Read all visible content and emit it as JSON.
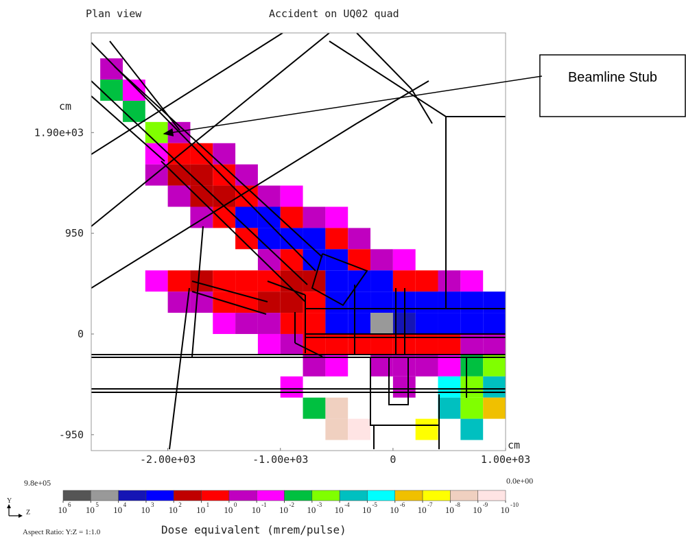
{
  "chart_data": {
    "type": "heatmap",
    "title": "Accident on UQ02 quad",
    "subtitle": "Plan view",
    "x_unit": "cm",
    "y_unit": "cm",
    "xlim": [
      -2680,
      1000
    ],
    "ylim": [
      -1100,
      2840
    ],
    "xticks": [
      {
        "value": -2000,
        "label": "-2.00e+03"
      },
      {
        "value": -1000,
        "label": "-1.00e+03"
      },
      0,
      {
        "value": 1000,
        "label": "1.00e+03"
      }
    ],
    "yticks": [
      {
        "value": 1900,
        "label": "1.90e+03"
      },
      950,
      0,
      -950
    ],
    "x_bins": [
      -2600,
      -2400,
      -2200,
      -2000,
      -1800,
      -1600,
      -1400,
      -1200,
      -1000,
      -800,
      -600,
      -400,
      -200,
      0,
      200,
      400,
      600,
      800,
      1000
    ],
    "y_bins": [
      2800,
      2600,
      2400,
      2200,
      2000,
      1800,
      1600,
      1400,
      1200,
      1000,
      800,
      600,
      400,
      200,
      0,
      -200,
      -400,
      -600,
      -800,
      -1000
    ],
    "z": [
      [
        null,
        null,
        null,
        null,
        null,
        null,
        null,
        null,
        null,
        null,
        null,
        null,
        null,
        null,
        null,
        null,
        null,
        null
      ],
      [
        -0.5,
        null,
        null,
        null,
        null,
        null,
        null,
        null,
        null,
        null,
        null,
        null,
        null,
        null,
        null,
        null,
        null,
        null
      ],
      [
        -2.5,
        -1.5,
        null,
        null,
        null,
        null,
        null,
        null,
        null,
        null,
        null,
        null,
        null,
        null,
        null,
        null,
        null,
        null
      ],
      [
        null,
        -2.5,
        null,
        null,
        null,
        null,
        null,
        null,
        null,
        null,
        null,
        null,
        null,
        null,
        null,
        null,
        null,
        null
      ],
      [
        null,
        null,
        -3.5,
        -0.5,
        null,
        null,
        null,
        null,
        null,
        null,
        null,
        null,
        null,
        null,
        null,
        null,
        null,
        null
      ],
      [
        null,
        null,
        -1.5,
        0.5,
        0.5,
        -0.5,
        null,
        null,
        null,
        null,
        null,
        null,
        null,
        null,
        null,
        null,
        null,
        null
      ],
      [
        null,
        null,
        -0.5,
        1.5,
        1.5,
        0.5,
        -0.5,
        null,
        null,
        null,
        null,
        null,
        null,
        null,
        null,
        null,
        null,
        null
      ],
      [
        null,
        null,
        null,
        -0.5,
        1.5,
        1.5,
        0.5,
        -0.5,
        -1.5,
        null,
        null,
        null,
        null,
        null,
        null,
        null,
        null,
        null
      ],
      [
        null,
        null,
        null,
        null,
        -0.5,
        0.5,
        2.5,
        2.5,
        0.5,
        -0.5,
        -1.5,
        null,
        null,
        null,
        null,
        null,
        null,
        null
      ],
      [
        null,
        null,
        null,
        null,
        null,
        null,
        0.5,
        2.5,
        2.5,
        2.5,
        0.5,
        -0.5,
        null,
        null,
        null,
        null,
        null,
        null
      ],
      [
        null,
        null,
        null,
        null,
        null,
        null,
        null,
        -0.5,
        0.5,
        2.5,
        2.5,
        0.5,
        -0.5,
        -1.5,
        null,
        null,
        null,
        null
      ],
      [
        null,
        null,
        -1.5,
        0.5,
        1.5,
        0.5,
        0.5,
        0.5,
        1.5,
        1.5,
        2.5,
        2.5,
        2.5,
        0.5,
        0.5,
        -0.5,
        -1.5,
        null
      ],
      [
        null,
        null,
        null,
        -0.5,
        -0.5,
        0.5,
        0.5,
        1.5,
        1.5,
        0.5,
        2.5,
        2.5,
        2.5,
        2.5,
        2.5,
        2.5,
        2.5,
        2.5
      ],
      [
        null,
        null,
        null,
        null,
        null,
        -1.5,
        -0.5,
        -0.5,
        0.5,
        0.5,
        2.5,
        2.5,
        4.5,
        3.5,
        2.5,
        2.5,
        2.5,
        2.5
      ],
      [
        null,
        null,
        null,
        null,
        null,
        null,
        null,
        -1.5,
        -0.5,
        0.5,
        0.5,
        0.5,
        0.5,
        0.5,
        0.5,
        0.5,
        -0.5,
        -0.5
      ],
      [
        null,
        null,
        null,
        null,
        null,
        null,
        null,
        null,
        null,
        -0.5,
        -1.5,
        null,
        -0.5,
        -0.5,
        -0.5,
        -1.5,
        -2.5,
        -3.5
      ],
      [
        null,
        null,
        null,
        null,
        null,
        null,
        null,
        null,
        -1.5,
        null,
        null,
        null,
        null,
        -0.5,
        null,
        -5.5,
        -3.5,
        -4.5
      ],
      [
        null,
        null,
        null,
        null,
        null,
        null,
        null,
        null,
        null,
        -2.5,
        -8.5,
        null,
        null,
        null,
        null,
        -4.5,
        -3.5,
        -6.5
      ],
      [
        null,
        null,
        null,
        null,
        null,
        null,
        null,
        null,
        null,
        null,
        -8.5,
        -9.5,
        null,
        null,
        -7.5,
        null,
        -4.5,
        null
      ]
    ],
    "colorbar": {
      "max_label": "9.8e+05",
      "min_label": "0.0e+00",
      "base": "10",
      "levels": [
        6,
        5,
        4,
        3,
        2,
        1,
        0,
        -1,
        -2,
        -3,
        -4,
        -5,
        -6,
        -7,
        -8,
        -9,
        -10
      ],
      "colors": [
        "#555555",
        "#999999",
        "#1515b5",
        "#0000ff",
        "#c00000",
        "#ff0000",
        "#c000c0",
        "#ff00ff",
        "#00c040",
        "#80ff00",
        "#00c0c0",
        "#00ffff",
        "#f0c000",
        "#ffff00",
        "#f0d0c0",
        "#ffe4e4"
      ],
      "label": "Dose equivalent (mrem/pulse)"
    },
    "axis_indicator": {
      "y": "Y",
      "z": "Z"
    },
    "aspect_ratio": "Aspect Ratio: Y:Z = 1:1.0",
    "annotation": "Beamline Stub"
  }
}
